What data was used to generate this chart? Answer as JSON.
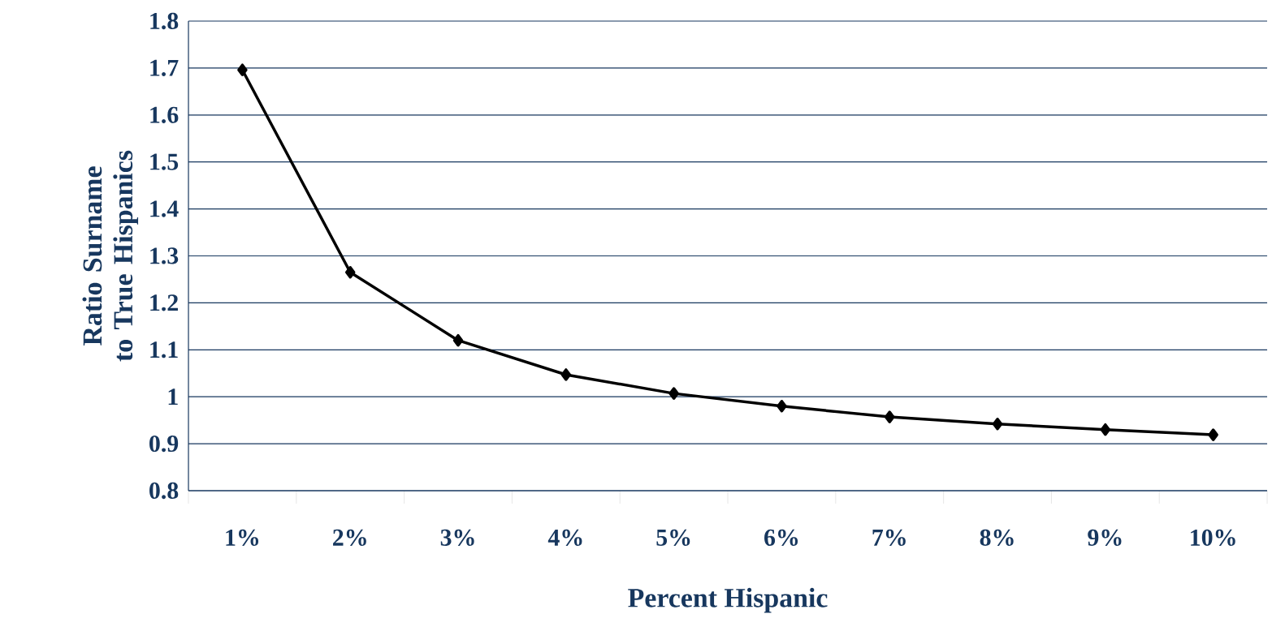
{
  "chart_data": {
    "type": "line",
    "xlabel": "Percent Hispanic",
    "ylabel": "Ratio Surname to True Hispanics",
    "categories": [
      "1%",
      "2%",
      "3%",
      "4%",
      "5%",
      "6%",
      "7%",
      "8%",
      "9%",
      "10%"
    ],
    "series": [
      {
        "color": "#000000",
        "values": [
          1.696,
          1.265,
          1.12,
          1.047,
          1.007,
          0.98,
          0.957,
          0.942,
          0.93,
          0.919
        ]
      }
    ],
    "ylim": [
      0.8,
      1.8
    ],
    "yticks": [
      0.8,
      0.9,
      1,
      1.1,
      1.2,
      1.3,
      1.4,
      1.5,
      1.6,
      1.7,
      1.8
    ],
    "grid": "y",
    "marker": "diamond",
    "line_style": "solid"
  }
}
